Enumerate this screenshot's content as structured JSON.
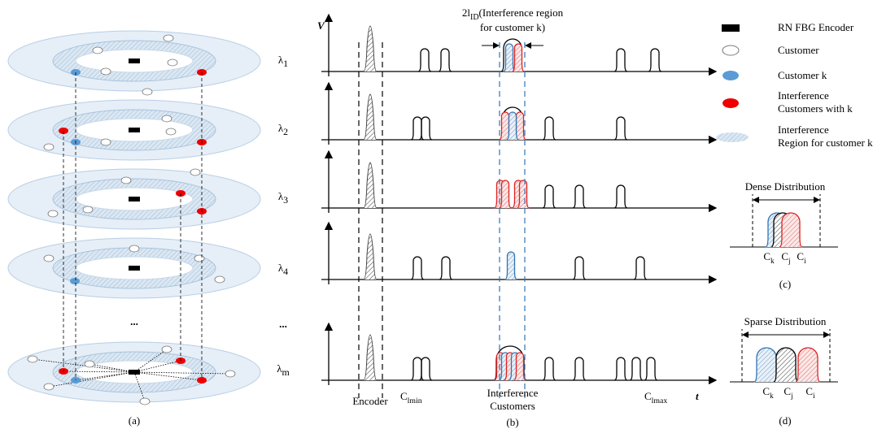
{
  "panel_a": {
    "caption": "(a)",
    "ellipsis": "..."
  },
  "panel_b": {
    "caption": "(b)",
    "y_axis": "V",
    "x_axis": "t",
    "region_label": {
      "main": "2l",
      "sub": "ID",
      "line1_rest": "(Interference region",
      "line2": "for customer k)"
    },
    "wavelengths": [
      {
        "base": "λ",
        "sub": "1"
      },
      {
        "base": "λ",
        "sub": "2"
      },
      {
        "base": "λ",
        "sub": "3"
      },
      {
        "base": "λ",
        "sub": "4"
      },
      {
        "base": "λ",
        "sub": "m"
      }
    ],
    "ellipsis": "...",
    "encoder": "Encoder",
    "c_min": {
      "base": "C",
      "sub": "lmin"
    },
    "interference_customers": [
      "Interference",
      "Customers"
    ],
    "c_max": {
      "base": "C",
      "sub": "lmax"
    }
  },
  "legend": [
    {
      "lines": [
        "RN FBG Encoder"
      ]
    },
    {
      "lines": [
        "Customer"
      ]
    },
    {
      "lines": [
        "Customer k"
      ]
    },
    {
      "lines": [
        "Interference",
        "Customers with k"
      ]
    },
    {
      "lines": [
        "Interference",
        "Region for customer k"
      ]
    }
  ],
  "panel_c": {
    "title": "Dense Distribution",
    "labels": [
      {
        "base": "C",
        "sub": "k"
      },
      {
        "base": "C",
        "sub": "j"
      },
      {
        "base": "C",
        "sub": "i"
      }
    ],
    "caption": "(c)"
  },
  "panel_d": {
    "title": "Sparse Distribution",
    "labels": [
      {
        "base": "C",
        "sub": "k"
      },
      {
        "base": "C",
        "sub": "j"
      },
      {
        "base": "C",
        "sub": "i"
      }
    ],
    "caption": "(d)"
  }
}
